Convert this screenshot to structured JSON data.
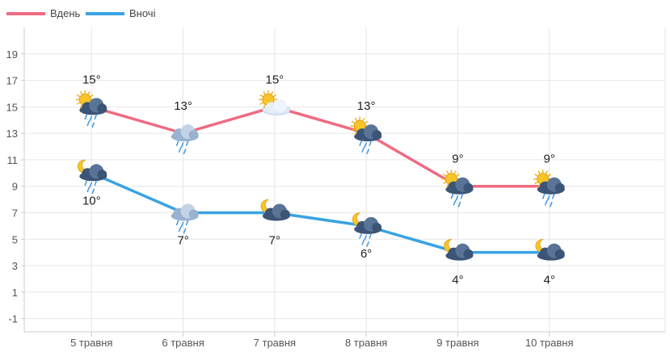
{
  "chart_data": {
    "type": "line",
    "categories": [
      "5 травня",
      "6 травня",
      "7 травня",
      "8 травня",
      "9 травня",
      "10 травня"
    ],
    "series": [
      {
        "name": "Вдень",
        "color": "#ef6b83",
        "values": [
          15,
          13,
          15,
          13,
          9,
          9
        ],
        "labels": [
          "15°",
          "13°",
          "15°",
          "13°",
          "9°",
          "9°"
        ],
        "icons": [
          "sun-cloud-rain-icon",
          "cloud-rain-icon",
          "sun-cloud-icon",
          "sun-cloud-rain-icon",
          "sun-cloud-rain-icon",
          "sun-cloud-rain-icon"
        ]
      },
      {
        "name": "Вночі",
        "color": "#3aa3e3",
        "values": [
          10,
          7,
          7,
          6,
          4,
          4
        ],
        "labels": [
          "10°",
          "7°",
          "7°",
          "6°",
          "4°",
          "4°"
        ],
        "icons": [
          "moon-cloud-rain-icon",
          "cloud-rain-icon",
          "moon-cloud-icon",
          "moon-cloud-rain-icon",
          "moon-cloud-icon",
          "moon-cloud-icon"
        ]
      }
    ],
    "yticks": [
      -1,
      1,
      3,
      5,
      7,
      9,
      11,
      13,
      15,
      17,
      19
    ],
    "ylim": [
      -2,
      21
    ],
    "grid": true,
    "legend": "top-left",
    "title": "",
    "xlabel": "",
    "ylabel": ""
  }
}
